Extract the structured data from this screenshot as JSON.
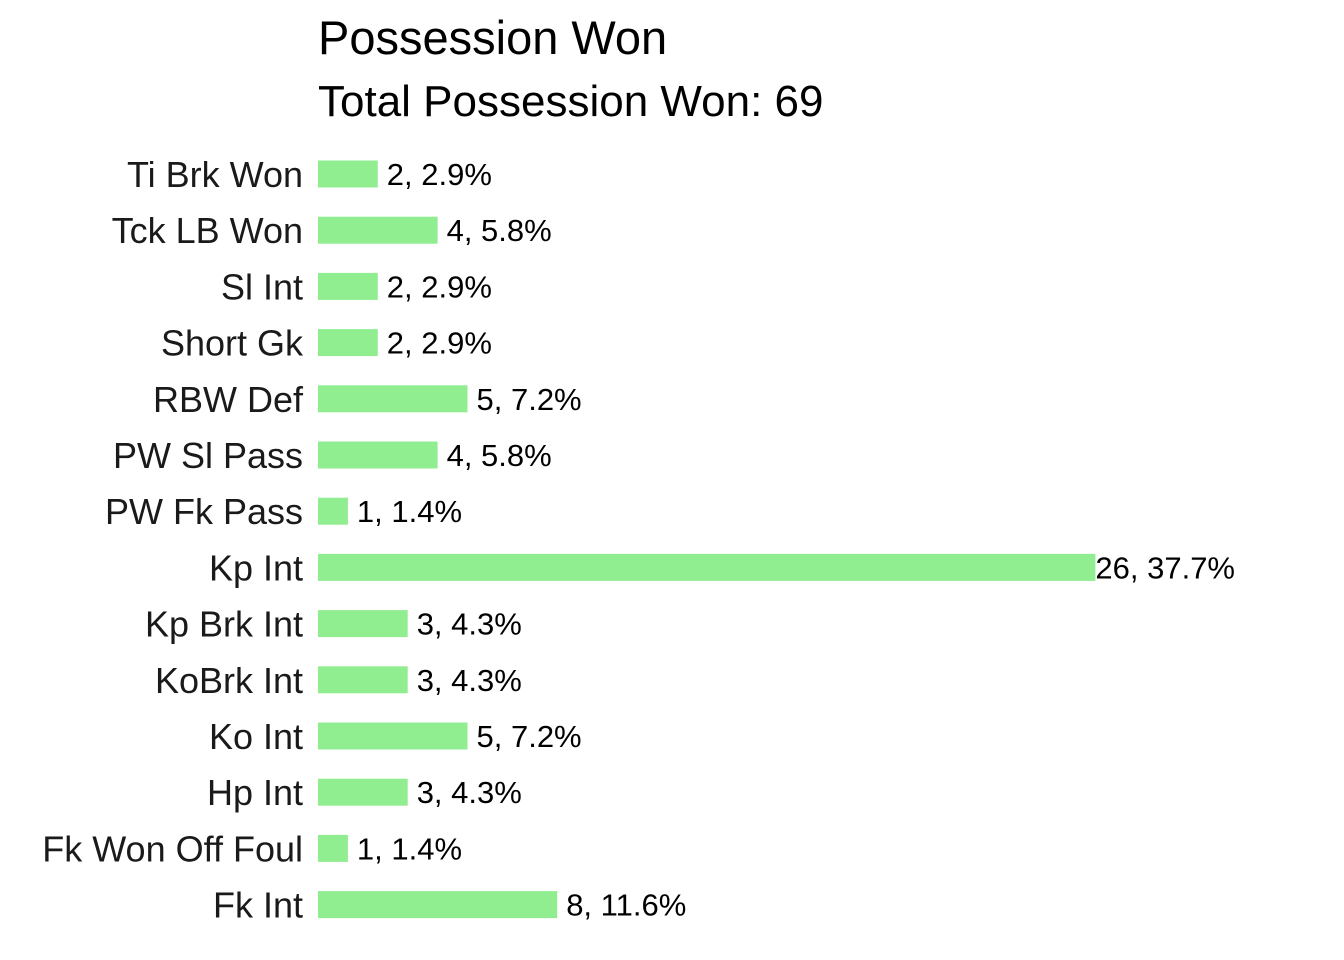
{
  "chart_data": {
    "type": "bar",
    "orientation": "horizontal",
    "title": "Possession Won",
    "subtitle": "Total Possession Won: 69",
    "xlabel": "",
    "ylabel": "",
    "grid": false,
    "bar_color": "#90EE90",
    "categories": [
      "Ti Brk Won",
      "Tck LB Won",
      "Sl Int",
      "Short Gk",
      "RBW Def",
      "PW Sl Pass",
      "PW Fk Pass",
      "Kp Int",
      "Kp Brk Int",
      "KoBrk Int",
      "Ko Int",
      "Hp Int",
      "Fk Won Off Foul",
      "Fk Int"
    ],
    "values": [
      2,
      4,
      2,
      2,
      5,
      4,
      1,
      26,
      3,
      3,
      5,
      3,
      1,
      8
    ],
    "data_labels": [
      "2, 2.9%",
      "4, 5.8%",
      "2, 2.9%",
      "2, 2.9%",
      "5, 7.2%",
      "4, 5.8%",
      "1, 1.4%",
      "26, 37.7%",
      "3, 4.3%",
      "3, 4.3%",
      "5, 7.2%",
      "3, 4.3%",
      "1, 1.4%",
      "8, 11.6%"
    ]
  }
}
